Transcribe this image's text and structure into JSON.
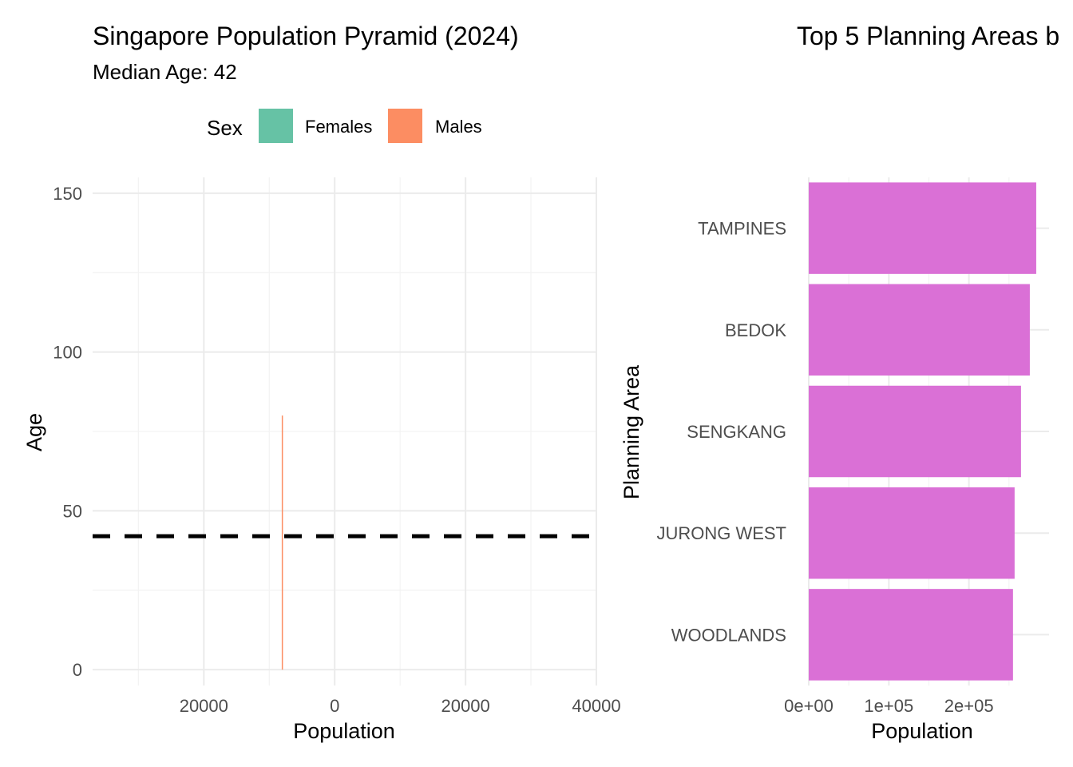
{
  "chart_data": [
    {
      "type": "bar",
      "orientation": "horizontal",
      "title": "Singapore Population Pyramid (2024)",
      "subtitle": "Median Age: 42",
      "xlabel": "Population",
      "ylabel": "Age",
      "xlim": [
        -37000,
        40000
      ],
      "ylim": [
        -5,
        155
      ],
      "x_ticks": [
        {
          "value": -20000,
          "label": "20000"
        },
        {
          "value": 0,
          "label": "0"
        },
        {
          "value": 20000,
          "label": "20000"
        },
        {
          "value": 40000,
          "label": "40000"
        }
      ],
      "y_ticks": [
        {
          "value": 0,
          "label": "0"
        },
        {
          "value": 50,
          "label": "50"
        },
        {
          "value": 100,
          "label": "100"
        },
        {
          "value": 150,
          "label": "150"
        }
      ],
      "legend": {
        "title": "Sex",
        "position": "top",
        "items": [
          {
            "name": "Females",
            "color": "#66C2A5"
          },
          {
            "name": "Males",
            "color": "#FC8D62"
          }
        ]
      },
      "series": [
        {
          "name": "Males",
          "color": "#FC8D62",
          "segments": [
            {
              "x": -8000,
              "y_from": 0,
              "y_to": 80
            }
          ]
        }
      ],
      "reference_line": {
        "y": 42,
        "style": "dashed",
        "color": "#000000"
      },
      "grid": true
    },
    {
      "type": "bar",
      "orientation": "horizontal",
      "title": "Top 5 Planning Areas b",
      "xlabel": "Population",
      "ylabel": "Planning Area",
      "xlim": [
        0,
        300000
      ],
      "x_ticks": [
        {
          "value": 0,
          "label": "0e+00"
        },
        {
          "value": 100000,
          "label": "1e+05"
        },
        {
          "value": 200000,
          "label": "2e+05"
        }
      ],
      "categories": [
        "TAMPINES",
        "BEDOK",
        "SENGKANG",
        "JURONG WEST",
        "WOODLANDS"
      ],
      "values": [
        284000,
        276000,
        265000,
        257000,
        255000
      ],
      "bar_color": "#DA70D6",
      "grid": true
    }
  ]
}
